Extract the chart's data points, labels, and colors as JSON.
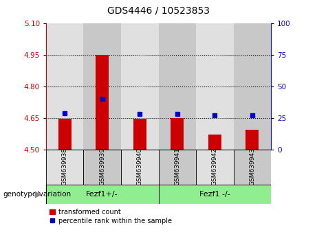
{
  "title": "GDS4446 / 10523853",
  "samples": [
    "GSM639938",
    "GSM639939",
    "GSM639940",
    "GSM639941",
    "GSM639942",
    "GSM639943"
  ],
  "bar_tops": [
    4.645,
    4.95,
    4.645,
    4.65,
    4.57,
    4.595
  ],
  "bar_bottom": 4.5,
  "dot_values_left": [
    4.672,
    4.74,
    4.67,
    4.667,
    4.663,
    4.663
  ],
  "ylim_left": [
    4.5,
    5.1
  ],
  "ylim_right": [
    0,
    100
  ],
  "yticks_left": [
    4.5,
    4.65,
    4.8,
    4.95,
    5.1
  ],
  "yticks_right": [
    0,
    25,
    50,
    75,
    100
  ],
  "hlines": [
    4.65,
    4.8,
    4.95
  ],
  "bar_color": "#cc0000",
  "dot_color": "#0000cc",
  "left_axis_color": "#cc0000",
  "right_axis_color": "#0000cc",
  "col_colors": [
    "#e0e0e0",
    "#c8c8c8"
  ],
  "group_color": "#90ee90",
  "group1_label": "Fezf1+/-",
  "group2_label": "Fezf1 -/-",
  "genotype_label": "genotype/variation",
  "legend_bar_label": "transformed count",
  "legend_dot_label": "percentile rank within the sample",
  "title_fontsize": 10,
  "tick_fontsize": 7.5,
  "sample_fontsize": 6.5,
  "group_fontsize": 8,
  "legend_fontsize": 7
}
